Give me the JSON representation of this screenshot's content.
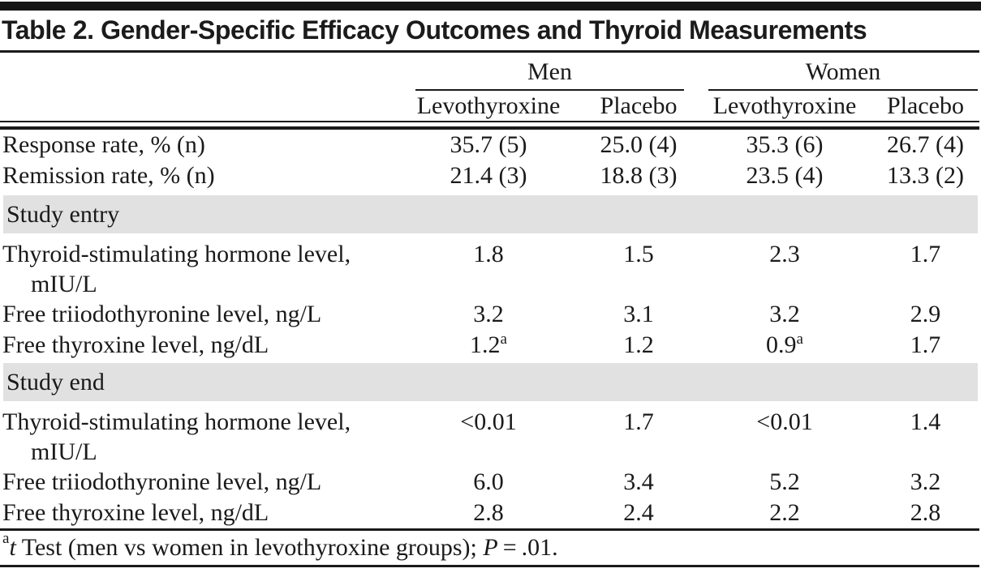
{
  "page": {
    "background": "#ffffff",
    "text_color": "#1a1a1a",
    "rule_color": "#1a1a1a",
    "section_bg": "#e1e1e1",
    "topbar_color": "#161616"
  },
  "table": {
    "title": "Table 2. Gender-Specific Efficacy Outcomes and Thyroid Measurements",
    "groups": [
      {
        "label": "Men"
      },
      {
        "label": "Women"
      }
    ],
    "columns": [
      "Levothyroxine",
      "Placebo",
      "Levothyroxine",
      "Placebo"
    ],
    "rows": [
      {
        "label": "Response rate, % (n)",
        "values": [
          "35.7 (5)",
          "25.0 (4)",
          "35.3 (6)",
          "26.7 (4)"
        ]
      },
      {
        "label": "Remission rate, % (n)",
        "values": [
          "21.4 (3)",
          "18.8 (3)",
          "23.5 (4)",
          "13.3 (2)"
        ]
      },
      {
        "section": "Study entry"
      },
      {
        "label": "Thyroid-stimulating hormone level,",
        "label2": "mIU/L",
        "values": [
          "1.8",
          "1.5",
          "2.3",
          "1.7"
        ]
      },
      {
        "label": "Free triiodothyronine level, ng/L",
        "values": [
          "3.2",
          "3.1",
          "3.2",
          "2.9"
        ]
      },
      {
        "label": "Free thyroxine level, ng/dL",
        "values": [
          "1.2",
          "1.2",
          "0.9",
          "1.7"
        ],
        "sups": [
          "a",
          "",
          "a",
          ""
        ]
      },
      {
        "section": "Study end"
      },
      {
        "label": "Thyroid-stimulating hormone level,",
        "label2": "mIU/L",
        "values": [
          "<0.01",
          "1.7",
          "<0.01",
          "1.4"
        ]
      },
      {
        "label": "Free triiodothyronine level, ng/L",
        "values": [
          "6.0",
          "3.4",
          "5.2",
          "3.2"
        ]
      },
      {
        "label": "Free thyroxine level, ng/dL",
        "values": [
          "2.8",
          "2.4",
          "2.2",
          "2.8"
        ]
      }
    ],
    "footnote": {
      "sup": "a",
      "italic_term": "t",
      "text": " Test (men vs women in levothyroxine groups); ",
      "italic_p": "P",
      "tail": " = .01."
    }
  }
}
